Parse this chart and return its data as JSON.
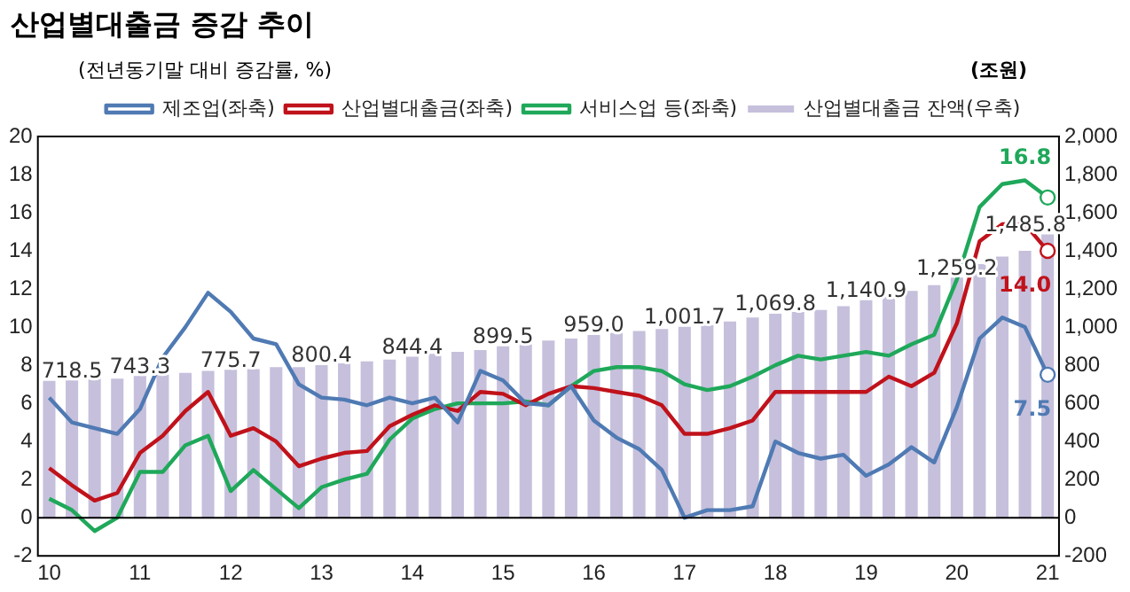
{
  "chart_data": {
    "type": "line",
    "title": "산업별대출금 증감 추이",
    "ylabel": "(전년동기말 대비 증감률, %)",
    "y2label": "(조원)",
    "categories": [
      "10",
      null,
      null,
      null,
      "11",
      null,
      null,
      null,
      "12",
      null,
      null,
      null,
      "13",
      null,
      null,
      null,
      "14",
      null,
      null,
      null,
      "15",
      null,
      null,
      null,
      "16",
      null,
      null,
      null,
      "17",
      null,
      null,
      null,
      "18",
      null,
      null,
      null,
      "19",
      null,
      null,
      null,
      "20",
      null,
      null,
      null,
      "21"
    ],
    "series": [
      {
        "name": "산업별대출금 잔액(우축)",
        "type": "bar",
        "axis": "y2",
        "color": "#c6c0dc",
        "values": [
          718.5,
          720,
          730,
          730,
          743.3,
          750,
          760,
          770,
          775.7,
          780,
          790,
          790,
          800.4,
          810,
          820,
          830,
          844.4,
          860,
          870,
          880,
          899.5,
          910,
          930,
          940,
          959.0,
          970,
          980,
          990,
          1001.7,
          1010,
          1030,
          1050,
          1069.8,
          1080,
          1090,
          1110,
          1140.9,
          1160,
          1190,
          1220,
          1259.2,
          1330,
          1370,
          1400,
          1485.8
        ],
        "value_labels": [
          "718.5",
          null,
          null,
          null,
          "743.3",
          null,
          null,
          null,
          "775.7",
          null,
          null,
          null,
          "800.4",
          null,
          null,
          null,
          "844.4",
          null,
          null,
          null,
          "899.5",
          null,
          null,
          null,
          "959.0",
          null,
          null,
          null,
          "1,001.7",
          null,
          null,
          null,
          "1,069.8",
          null,
          null,
          null,
          "1,140.9",
          null,
          null,
          null,
          "1,259.2",
          null,
          null,
          null,
          "1,485.8"
        ]
      },
      {
        "name": "제조업(좌축)",
        "color": "#4f7ab3",
        "values": [
          6.3,
          5.0,
          4.7,
          4.4,
          5.7,
          8.4,
          10.0,
          11.8,
          10.8,
          9.4,
          9.1,
          7.0,
          6.3,
          6.2,
          5.9,
          6.3,
          6.0,
          6.3,
          5.0,
          7.7,
          7.2,
          6.0,
          5.9,
          6.9,
          5.1,
          4.2,
          3.6,
          2.5,
          0.0,
          0.4,
          0.4,
          0.6,
          4.0,
          3.4,
          3.1,
          3.3,
          2.2,
          2.8,
          3.7,
          2.9,
          5.8,
          9.4,
          10.5,
          10.0,
          7.5
        ],
        "value_labels": [
          null,
          null,
          null,
          null,
          null,
          null,
          null,
          null,
          null,
          null,
          null,
          null,
          null,
          null,
          null,
          null,
          null,
          null,
          null,
          null,
          null,
          null,
          null,
          null,
          null,
          null,
          null,
          null,
          null,
          null,
          null,
          null,
          null,
          null,
          null,
          null,
          null,
          null,
          null,
          null,
          null,
          null,
          null,
          null,
          "7.5"
        ]
      },
      {
        "name": "산업별대출금(좌축)",
        "color": "#c0121b",
        "values": [
          2.6,
          1.7,
          0.9,
          1.3,
          3.4,
          4.3,
          5.6,
          6.6,
          4.3,
          4.7,
          4.0,
          2.7,
          3.1,
          3.4,
          3.5,
          4.8,
          5.4,
          5.9,
          5.6,
          6.6,
          6.5,
          5.9,
          6.5,
          6.9,
          6.8,
          6.6,
          6.4,
          5.9,
          4.4,
          4.4,
          4.7,
          5.1,
          6.6,
          6.6,
          6.6,
          6.6,
          6.6,
          7.4,
          6.9,
          7.6,
          10.2,
          14.5,
          15.4,
          15.4,
          14.0
        ],
        "value_labels": [
          null,
          null,
          null,
          null,
          null,
          null,
          null,
          null,
          null,
          null,
          null,
          null,
          null,
          null,
          null,
          null,
          null,
          null,
          null,
          null,
          null,
          null,
          null,
          null,
          null,
          null,
          null,
          null,
          null,
          null,
          null,
          null,
          null,
          null,
          null,
          null,
          null,
          null,
          null,
          null,
          null,
          null,
          null,
          null,
          "14.0"
        ]
      },
      {
        "name": "서비스업 등(좌축)",
        "color": "#1fa85a",
        "values": [
          1.0,
          0.4,
          -0.7,
          0.0,
          2.4,
          2.4,
          3.8,
          4.3,
          1.4,
          2.5,
          1.5,
          0.5,
          1.6,
          2.0,
          2.3,
          4.1,
          5.2,
          5.7,
          6.0,
          6.0,
          6.0,
          6.1,
          5.9,
          6.9,
          7.7,
          7.9,
          7.9,
          7.7,
          7.0,
          6.7,
          6.9,
          7.4,
          8.0,
          8.5,
          8.3,
          8.5,
          8.7,
          8.5,
          9.1,
          9.6,
          12.5,
          16.3,
          17.5,
          17.7,
          16.8
        ],
        "value_labels": [
          null,
          null,
          null,
          null,
          null,
          null,
          null,
          null,
          null,
          null,
          null,
          null,
          null,
          null,
          null,
          null,
          null,
          null,
          null,
          null,
          null,
          null,
          null,
          null,
          null,
          null,
          null,
          null,
          null,
          null,
          null,
          null,
          null,
          null,
          null,
          null,
          null,
          null,
          null,
          null,
          null,
          null,
          null,
          null,
          "16.8"
        ]
      }
    ],
    "ylim": [
      -2,
      20
    ],
    "yticks": [
      -2,
      0,
      2,
      4,
      6,
      8,
      10,
      12,
      14,
      16,
      18,
      20
    ],
    "y2lim": [
      -200,
      2000
    ],
    "y2ticks": [
      -200,
      0,
      200,
      400,
      600,
      800,
      {
        "value": 1000,
        "label": "1,000"
      },
      {
        "value": 1200,
        "label": "1,200"
      },
      {
        "value": 1400,
        "label": "1,400"
      },
      {
        "value": 1600,
        "label": "1,600"
      },
      {
        "value": 1800,
        "label": "1,800"
      },
      {
        "value": 2000,
        "label": "2,000"
      }
    ],
    "ref_lines": [
      {
        "axis": "y",
        "value": 0,
        "color": "#000000"
      }
    ],
    "grid": false,
    "legend": "top",
    "line_style": "solid"
  }
}
